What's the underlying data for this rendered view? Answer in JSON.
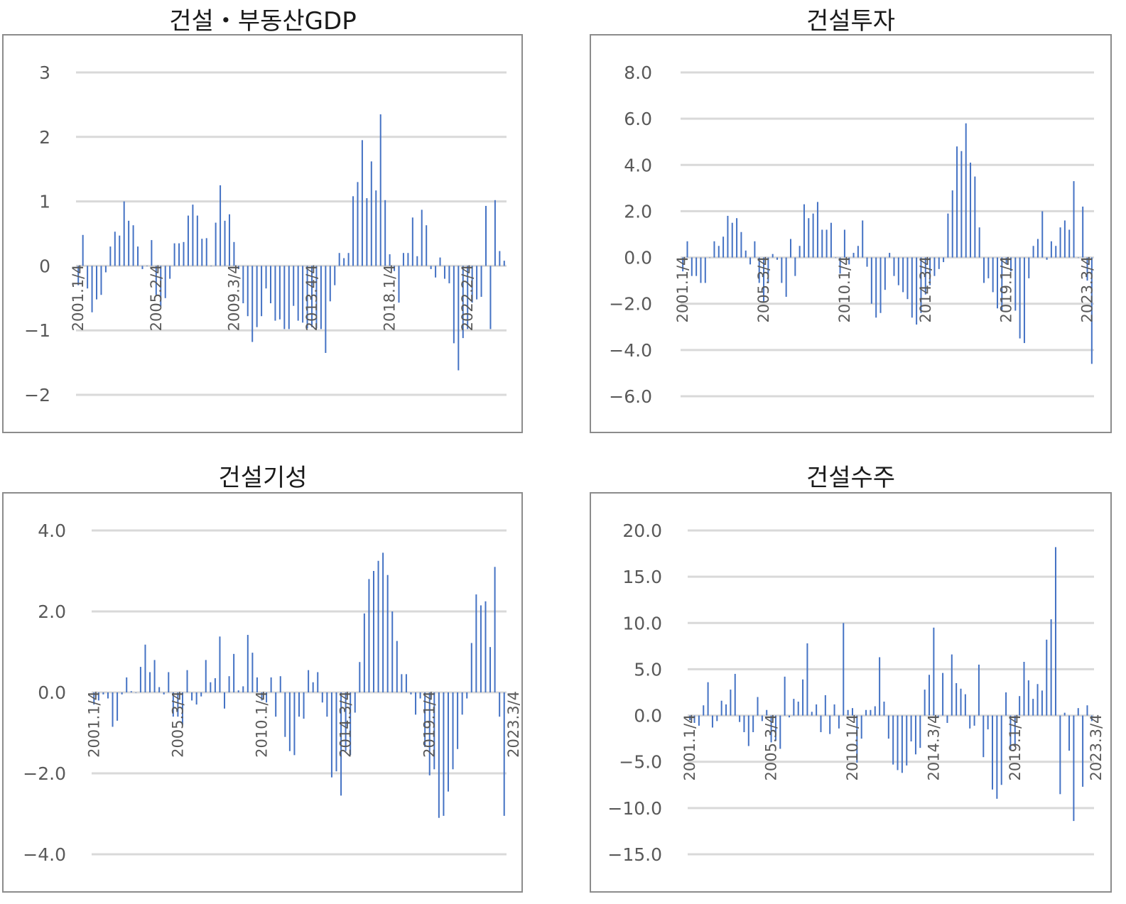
{
  "chart_data": [
    {
      "type": "bar",
      "title": "건설・부동산GDP",
      "ylim": [
        -2,
        3
      ],
      "yticks": [
        3,
        2,
        1,
        0,
        -1,
        -2
      ],
      "ytick_labels": [
        "3",
        "2",
        "1",
        "0",
        "−1",
        "−2"
      ],
      "xtick_labels": [
        "2001.1/4",
        "2005.2/4",
        "2009.3/4",
        "2013.4/4",
        "2018.1/4",
        "2022.2/4"
      ],
      "xtick_indices": [
        0,
        17,
        34,
        51,
        68,
        85
      ],
      "grid": true,
      "series": [
        {
          "values": [
            -0.3,
            0.48,
            -0.35,
            -0.72,
            -0.52,
            -0.45,
            -0.1,
            0.3,
            0.53,
            0.47,
            1.0,
            0.7,
            0.63,
            0.3,
            -0.05,
            0.0,
            0.4,
            -0.45,
            -0.63,
            -0.5,
            -0.2,
            0.35,
            0.35,
            0.37,
            0.78,
            0.95,
            0.78,
            0.42,
            0.43,
            0.0,
            0.67,
            1.25,
            0.7,
            0.8,
            0.37,
            -0.05,
            -0.58,
            -0.78,
            -1.18,
            -0.95,
            -0.78,
            -0.35,
            -0.58,
            -0.85,
            -0.83,
            -0.98,
            -0.98,
            -0.62,
            -0.85,
            -0.88,
            -0.97,
            -0.95,
            -0.97,
            -0.98,
            -1.35,
            -0.55,
            -0.3,
            0.2,
            0.12,
            0.2,
            1.08,
            1.3,
            1.95,
            1.05,
            1.62,
            1.17,
            2.35,
            1.02,
            0.18,
            -0.08,
            -0.57,
            0.2,
            0.2,
            0.75,
            0.15,
            0.87,
            0.63,
            -0.05,
            -0.18,
            0.13,
            -0.2,
            -0.27,
            -1.2,
            -1.62,
            -1.12,
            -0.98,
            -0.57,
            -0.52,
            -0.48,
            0.93,
            -0.98,
            1.02,
            0.23,
            0.08
          ]
        }
      ]
    },
    {
      "type": "bar",
      "title": "건설투자",
      "ylim": [
        -6.0,
        8.0
      ],
      "yticks": [
        8.0,
        6.0,
        4.0,
        2.0,
        0.0,
        -2.0,
        -4.0,
        -6.0
      ],
      "ytick_labels": [
        "8.0",
        "6.0",
        "4.0",
        "2.0",
        "0.0",
        "−2.0",
        "−4.0",
        "−6.0"
      ],
      "xtick_labels": [
        "2001.1/4",
        "2005.3/4",
        "2010.1/4",
        "2014.3/4",
        "2019.1/4",
        "2023.3/4"
      ],
      "xtick_indices": [
        0,
        18,
        36,
        54,
        72,
        90
      ],
      "grid": true,
      "series": [
        {
          "values": [
            -0.6,
            0.7,
            -0.8,
            -0.8,
            -1.1,
            -1.1,
            0.0,
            0.7,
            0.5,
            0.9,
            1.8,
            1.5,
            1.7,
            1.1,
            0.3,
            -0.3,
            0.7,
            -1.1,
            -1.9,
            -1.1,
            0.15,
            -0.1,
            -1.1,
            -1.7,
            0.8,
            -0.8,
            0.5,
            2.3,
            1.7,
            1.9,
            2.4,
            1.2,
            1.2,
            1.5,
            0.0,
            -0.7,
            1.2,
            -0.3,
            0.2,
            0.5,
            1.6,
            -0.4,
            -2.0,
            -2.6,
            -2.4,
            -1.4,
            0.2,
            -0.8,
            -1.2,
            -1.5,
            -1.8,
            -2.6,
            -2.9,
            -2.4,
            -1.6,
            -1.2,
            -0.8,
            -0.5,
            -0.2,
            1.9,
            2.9,
            4.8,
            4.6,
            5.8,
            4.1,
            3.5,
            1.3,
            -1.1,
            -0.9,
            -1.5,
            -2.2,
            -2.3,
            -0.3,
            -0.6,
            -2.3,
            -3.5,
            -3.7,
            -0.9,
            0.5,
            0.8,
            2.0,
            -0.1,
            0.7,
            0.5,
            1.3,
            1.6,
            1.2,
            3.3,
            0.0,
            2.2,
            -1.0,
            -4.6
          ]
        }
      ]
    },
    {
      "type": "bar",
      "title": "건설기성",
      "ylim": [
        -4.0,
        4.0
      ],
      "yticks": [
        4.0,
        2.0,
        0.0,
        -2.0,
        -4.0
      ],
      "ytick_labels": [
        "4.0",
        "2.0",
        "0.0",
        "−2.0",
        "−4.0"
      ],
      "xtick_labels": [
        "2001.1/4",
        "2005.3/4",
        "2010.1/4",
        "2014.3/4",
        "2019.1/4",
        "2023.3/4"
      ],
      "xtick_indices": [
        0,
        18,
        36,
        54,
        72,
        90
      ],
      "grid": true,
      "series": [
        {
          "values": [
            -0.3,
            -0.2,
            -0.05,
            -0.15,
            -0.85,
            -0.7,
            -0.05,
            0.37,
            0.03,
            0.0,
            0.63,
            1.18,
            0.5,
            0.8,
            0.13,
            -0.05,
            0.5,
            -0.6,
            -0.6,
            -0.8,
            0.55,
            -0.2,
            -0.3,
            -0.1,
            0.8,
            0.25,
            0.35,
            1.38,
            -0.4,
            0.4,
            0.95,
            0.05,
            0.15,
            1.42,
            0.98,
            0.37,
            -0.2,
            -0.25,
            0.37,
            -0.6,
            0.4,
            -1.1,
            -1.45,
            -1.55,
            -0.6,
            -0.65,
            0.55,
            0.25,
            0.5,
            -0.25,
            -0.6,
            -2.1,
            -1.95,
            -2.55,
            -1.45,
            -1.55,
            -0.5,
            0.75,
            1.95,
            2.8,
            3.0,
            3.25,
            3.45,
            2.9,
            2.0,
            1.27,
            0.45,
            0.45,
            -0.05,
            -0.55,
            -0.15,
            -1.35,
            -2.05,
            -1.9,
            -3.1,
            -3.05,
            -2.45,
            -1.9,
            -1.4,
            -0.55,
            -0.15,
            1.22,
            2.42,
            2.15,
            2.25,
            1.12,
            3.1,
            -0.6,
            -3.05
          ]
        }
      ]
    },
    {
      "type": "bar",
      "title": "건설수주",
      "ylim": [
        -15.0,
        20.0
      ],
      "yticks": [
        20.0,
        15.0,
        10.0,
        5.0,
        0.0,
        -5.0,
        -10.0,
        -15.0
      ],
      "ytick_labels": [
        "20.0",
        "15.0",
        "10.0",
        "5.0",
        "0.0",
        "−5.0",
        "−10.0",
        "−15.0"
      ],
      "xtick_labels": [
        "2001.1/4",
        "2005.3/4",
        "2010.1/4",
        "2014.3/4",
        "2019.1/4",
        "2023.3/4"
      ],
      "xtick_indices": [
        0,
        18,
        36,
        54,
        72,
        90
      ],
      "grid": true,
      "series": [
        {
          "values": [
            -0.5,
            -0.8,
            -1.1,
            1.1,
            3.6,
            -1.3,
            -0.6,
            1.6,
            1.2,
            2.8,
            4.5,
            -0.7,
            -1.8,
            -3.3,
            -1.8,
            2.0,
            -0.6,
            0.6,
            -2.9,
            -2.7,
            -3.6,
            4.2,
            -0.2,
            1.8,
            1.5,
            3.9,
            7.8,
            0.4,
            1.2,
            -1.8,
            2.2,
            -2.0,
            1.2,
            -1.4,
            10.0,
            0.6,
            0.8,
            -5.1,
            -2.5,
            0.6,
            0.6,
            1.0,
            6.3,
            1.5,
            -2.5,
            -5.3,
            -5.9,
            -6.2,
            -5.4,
            -2.8,
            -4.2,
            -3.5,
            2.8,
            4.4,
            9.5,
            -0.2,
            4.6,
            -0.8,
            6.6,
            3.5,
            2.9,
            2.3,
            -1.4,
            -1.1,
            5.5,
            -4.5,
            -1.5,
            -8.0,
            -9.0,
            -7.5,
            2.5,
            -3.7,
            -3.4,
            2.1,
            5.8,
            3.8,
            1.8,
            3.4,
            2.7,
            8.2,
            10.4,
            18.2,
            -8.5,
            0.3,
            -3.8,
            -11.4,
            0.8,
            -7.7,
            1.1,
            -0.6
          ]
        }
      ]
    }
  ]
}
